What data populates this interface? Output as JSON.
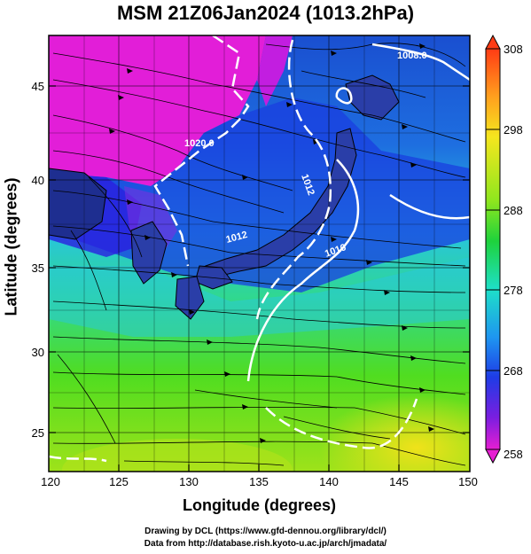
{
  "title": "MSM 21Z06Jan2024 (1013.2hPa)",
  "map": {
    "xlabel": "Longitude (degrees)",
    "ylabel": "Latitude  (degrees)",
    "x_ticks": [
      "120",
      "125",
      "130",
      "135",
      "140",
      "145",
      "150"
    ],
    "y_ticks": [
      "25",
      "30",
      "35",
      "40",
      "45"
    ],
    "x_range": [
      120,
      150
    ],
    "y_range": [
      22.4,
      47.6
    ],
    "contour_labels": [
      "1008.0",
      "1020.0",
      "1012",
      "1016",
      "1012"
    ]
  },
  "colorbar": {
    "labels": [
      "308",
      "298",
      "288",
      "278",
      "268",
      "258"
    ],
    "min": 258,
    "max": 308
  },
  "credits": {
    "line1": "Drawing by DCL (https://www.gfd-dennou.org/library/dcl/)",
    "line2": "Data from http://database.rish.kyoto-u.ac.jp/arch/jmadata/"
  }
}
